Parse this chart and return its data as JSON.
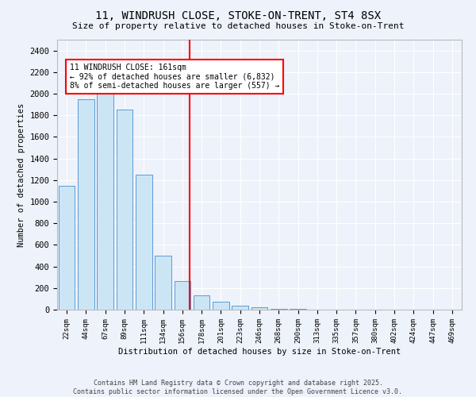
{
  "title": "11, WINDRUSH CLOSE, STOKE-ON-TRENT, ST4 8SX",
  "subtitle": "Size of property relative to detached houses in Stoke-on-Trent",
  "xlabel": "Distribution of detached houses by size in Stoke-on-Trent",
  "ylabel": "Number of detached properties",
  "bins": [
    "22sqm",
    "44sqm",
    "67sqm",
    "89sqm",
    "111sqm",
    "134sqm",
    "156sqm",
    "178sqm",
    "201sqm",
    "223sqm",
    "246sqm",
    "268sqm",
    "290sqm",
    "313sqm",
    "335sqm",
    "357sqm",
    "380sqm",
    "402sqm",
    "424sqm",
    "447sqm",
    "469sqm"
  ],
  "values": [
    1150,
    1950,
    2000,
    1850,
    1250,
    500,
    265,
    130,
    75,
    40,
    20,
    10,
    5,
    3,
    2,
    1,
    1,
    0,
    0,
    0,
    0
  ],
  "bar_color": "#cce5f5",
  "bar_edge_color": "#5b9bd5",
  "vline_x_index": 6,
  "vline_color": "red",
  "annotation_text": "11 WINDRUSH CLOSE: 161sqm\n← 92% of detached houses are smaller (6,832)\n8% of semi-detached houses are larger (557) →",
  "annotation_box_color": "white",
  "annotation_box_edge_color": "red",
  "ylim": [
    0,
    2500
  ],
  "yticks": [
    0,
    200,
    400,
    600,
    800,
    1000,
    1200,
    1400,
    1600,
    1800,
    2000,
    2200,
    2400
  ],
  "footer": "Contains HM Land Registry data © Crown copyright and database right 2025.\nContains public sector information licensed under the Open Government Licence v3.0.",
  "bg_color": "#eef2fa"
}
